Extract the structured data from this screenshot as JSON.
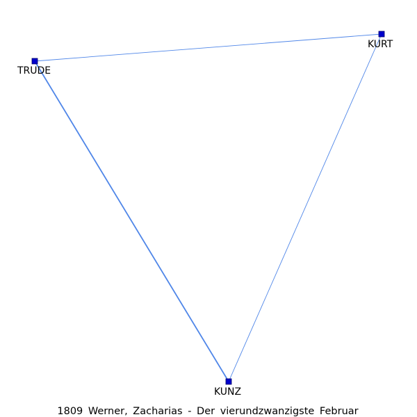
{
  "caption": "1809 Werner, Zacharias - Der vierundzwanzigste Februar",
  "nodes": [
    {
      "id": "trude",
      "label": "TRUDE"
    },
    {
      "id": "kurt",
      "label": "KURT"
    },
    {
      "id": "kunz",
      "label": "KUNZ"
    }
  ],
  "edges": [
    {
      "from": "trude",
      "to": "kurt",
      "weight": 1
    },
    {
      "from": "trude",
      "to": "kunz",
      "weight": 2
    },
    {
      "from": "kurt",
      "to": "kunz",
      "weight": 1
    }
  ],
  "colors": {
    "edge": "#4f86e8",
    "node_fill": "#0000cc"
  }
}
